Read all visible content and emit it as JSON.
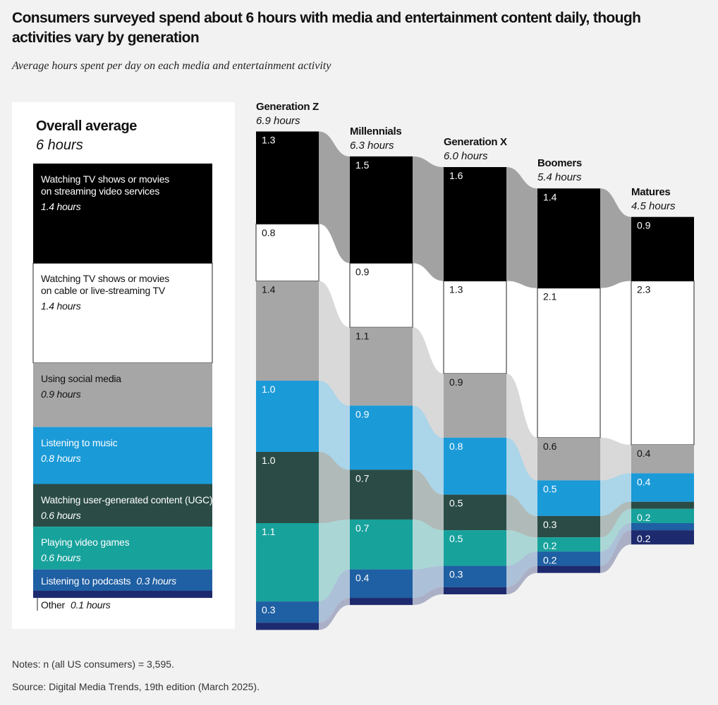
{
  "chart_data": {
    "type": "bar",
    "title": "Consumers surveyed spend about 6 hours with media and entertainment content daily, though activities vary by generation",
    "subtitle": "Average hours spent per day on each media and entertainment activity",
    "categories": [
      "Overall average",
      "Generation Z",
      "Millennials",
      "Generation X",
      "Boomers",
      "Matures"
    ],
    "total_labels": [
      "6 hours",
      "6.9 hours",
      "6.3 hours",
      "6.0 hours",
      "5.4 hours",
      "4.5 hours"
    ],
    "series": [
      {
        "name": "Watching TV shows or movies on streaming video services",
        "color": "#000000",
        "values": [
          1.4,
          1.3,
          1.5,
          1.6,
          1.4,
          0.9
        ],
        "value_labels": [
          "1.4 hours",
          "1.3",
          "1.5",
          "1.6",
          "1.4",
          "0.9"
        ]
      },
      {
        "name": "Watching TV shows or movies on cable or live-streaming TV",
        "color": "#ffffff",
        "values": [
          1.4,
          0.8,
          0.9,
          1.3,
          2.1,
          2.3
        ],
        "value_labels": [
          "1.4 hours",
          "0.8",
          "0.9",
          "1.3",
          "2.1",
          "2.3"
        ]
      },
      {
        "name": "Using social media",
        "color": "#a6a6a6",
        "values": [
          0.9,
          1.4,
          1.1,
          0.9,
          0.6,
          0.4
        ],
        "value_labels": [
          "0.9 hours",
          "1.4",
          "1.1",
          "0.9",
          "0.6",
          "0.4"
        ]
      },
      {
        "name": "Listening to music",
        "color": "#1b9ad8",
        "values": [
          0.8,
          1.0,
          0.9,
          0.8,
          0.5,
          0.4
        ],
        "value_labels": [
          "0.8 hours",
          "1.0",
          "0.9",
          "0.8",
          "0.5",
          "0.4"
        ]
      },
      {
        "name": "Watching user-generated content (UGC)",
        "color": "#2b4c46",
        "values": [
          0.6,
          1.0,
          0.7,
          0.5,
          0.3,
          0.1
        ],
        "value_labels": [
          "0.6 hours",
          "1.0",
          "0.7",
          "0.5",
          "0.3",
          null
        ]
      },
      {
        "name": "Playing video games",
        "color": "#17a29c",
        "values": [
          0.6,
          1.1,
          0.7,
          0.5,
          0.2,
          0.2
        ],
        "value_labels": [
          "0.6 hours",
          "1.1",
          "0.7",
          "0.5",
          "0.2",
          "0.2"
        ]
      },
      {
        "name": "Listening to podcasts",
        "color": "#1f5fa3",
        "values": [
          0.3,
          0.3,
          0.4,
          0.3,
          0.2,
          0.1
        ],
        "value_labels": [
          "0.3 hours",
          "0.3",
          "0.4",
          "0.3",
          "0.2",
          null
        ]
      },
      {
        "name": "Other",
        "color": "#1e2a6e",
        "values": [
          0.1,
          0.1,
          0.1,
          0.1,
          0.1,
          0.2
        ],
        "value_labels": [
          "0.1 hours",
          null,
          null,
          null,
          null,
          "0.2"
        ]
      }
    ],
    "notes": "Notes: n (all US consumers) = 3,595.",
    "source": "Source: Digital Media Trends, 19th edition (March 2025)."
  }
}
